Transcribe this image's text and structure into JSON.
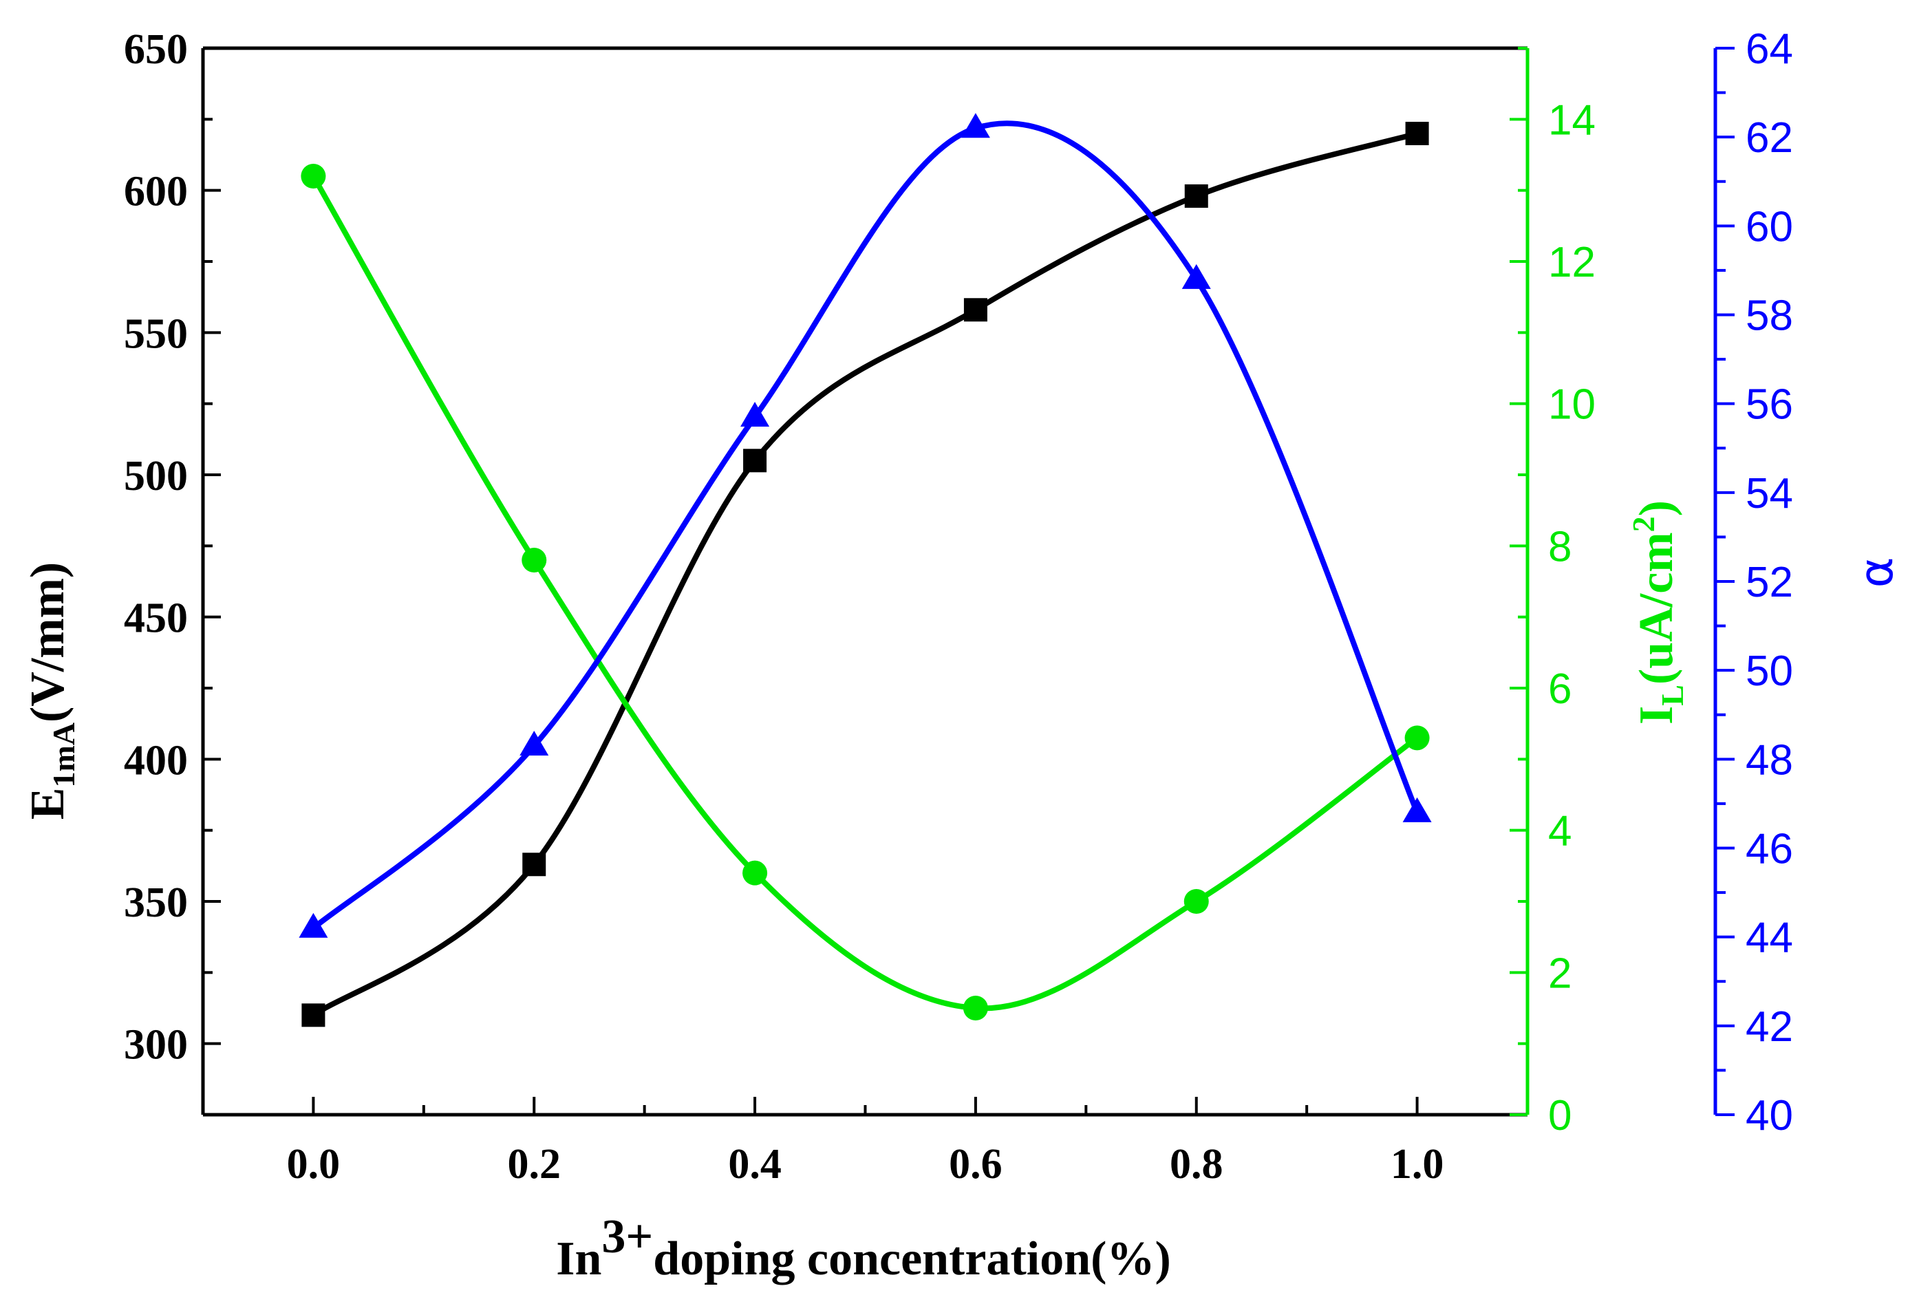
{
  "chart_data": {
    "type": "line",
    "x": [
      0.0,
      0.2,
      0.4,
      0.6,
      0.8,
      1.0
    ],
    "x_tick_labels": [
      "0.0",
      "0.2",
      "0.4",
      "0.6",
      "0.8",
      "1.0"
    ],
    "xlim": [
      -0.1,
      1.1
    ],
    "xlabel": {
      "base": "In",
      "sup": "3+",
      "rest": "doping concentration(%)"
    },
    "colors": {
      "e1ma": "#000000",
      "il": "#00e600",
      "alpha": "#0000ff"
    },
    "series": [
      {
        "name": "E1mA",
        "axis": "left",
        "marker": "square",
        "values": [
          310,
          363,
          505,
          558,
          598,
          620
        ],
        "ylim": [
          275,
          650
        ],
        "ticks": [
          "300",
          "350",
          "400",
          "450",
          "500",
          "550",
          "600",
          "650"
        ],
        "label": {
          "base": "E",
          "sub": "1mA",
          "rest": "(V/mm)"
        }
      },
      {
        "name": "IL",
        "axis": "right-1",
        "marker": "circle",
        "values": [
          13.2,
          7.8,
          3.4,
          1.5,
          3.0,
          5.3
        ],
        "ylim": [
          0,
          15
        ],
        "ticks": [
          "0",
          "2",
          "4",
          "6",
          "8",
          "10",
          "12",
          "14"
        ],
        "label": {
          "base": "I",
          "sub": "L",
          "rest": "(uA/cm",
          "sup": "2",
          "close": ")"
        }
      },
      {
        "name": "alpha",
        "axis": "right-2",
        "marker": "triangle",
        "values": [
          44.2,
          48.3,
          55.7,
          62.2,
          58.8,
          46.8
        ],
        "ylim": [
          40,
          64
        ],
        "ticks": [
          "40",
          "42",
          "44",
          "46",
          "48",
          "50",
          "52",
          "54",
          "56",
          "58",
          "60",
          "62",
          "64"
        ],
        "label": "α"
      }
    ]
  }
}
